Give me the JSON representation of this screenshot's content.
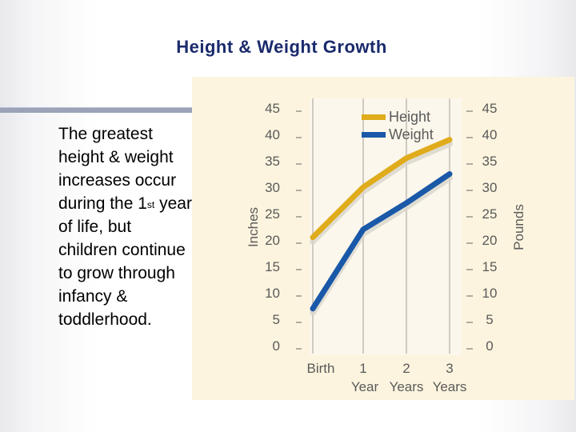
{
  "title": "Height & Weight Growth",
  "body": {
    "line1": "The greatest height & weight increases occur during the 1",
    "sup": "st",
    "line2": " year of life, but children continue to grow through infancy & toddlerhood."
  },
  "colors": {
    "title": "#1a2a6c",
    "panel": "#fcf4de",
    "height": "#e0ac1c",
    "weight": "#1a58a8",
    "axis_text": "#5a5a5a"
  },
  "chart_data": {
    "type": "line",
    "categories": [
      "Birth",
      "1",
      "2",
      "3"
    ],
    "category_sublabels": [
      "",
      "Year",
      "Years",
      "Years"
    ],
    "series": [
      {
        "name": "Height",
        "axis": "left",
        "values": [
          20.5,
          30,
          35.5,
          39
        ]
      },
      {
        "name": "Weight",
        "axis": "right",
        "values": [
          7,
          22,
          27,
          32.5
        ]
      }
    ],
    "left_axis": {
      "label": "Inches",
      "ticks": [
        0,
        5,
        10,
        15,
        20,
        25,
        30,
        35,
        40,
        45
      ],
      "ylim": [
        0,
        45
      ]
    },
    "right_axis": {
      "label": "Pounds",
      "ticks": [
        0,
        5,
        10,
        15,
        20,
        25,
        30,
        35,
        40,
        45
      ],
      "ylim": [
        0,
        45
      ]
    },
    "legend": [
      "Height",
      "Weight"
    ],
    "legend_position": "top-right",
    "grid": "vertical"
  }
}
